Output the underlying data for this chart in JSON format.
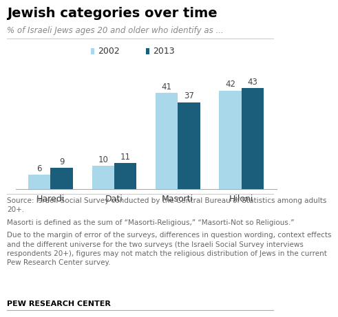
{
  "title": "Jewish categories over time",
  "subtitle": "% of Israeli Jews ages 20 and older who identify as ...",
  "categories": [
    "Haredi",
    "Dati",
    "Masorti",
    "Hiloni"
  ],
  "values_2002": [
    6,
    10,
    41,
    42
  ],
  "values_2013": [
    9,
    11,
    37,
    43
  ],
  "color_2002": "#a8d8ea",
  "color_2013": "#1b5e7b",
  "legend_labels": [
    "2002",
    "2013"
  ],
  "ylim": [
    0,
    50
  ],
  "bar_width": 0.35,
  "source_text": "Source: Israeli Social Survey conducted by the Central Bureau of Statistics among adults\n20+.",
  "note1": "Masorti is defined as the sum of “Masorti-Religious,” “Masorti-Not so Religious.”",
  "note2": "Due to the margin of error of the surveys, differences in question wording, context effects\nand the different universe for the two surveys (the Israeli Social Survey interviews\nrespondents 20+), figures may not match the religious distribution of Jews in the current\nPew Research Center survey.",
  "footer": "PEW RESEARCH CENTER",
  "title_fontsize": 14,
  "subtitle_fontsize": 8.5,
  "label_fontsize": 8.5,
  "tick_fontsize": 9,
  "note_fontsize": 7.5,
  "footer_fontsize": 8
}
